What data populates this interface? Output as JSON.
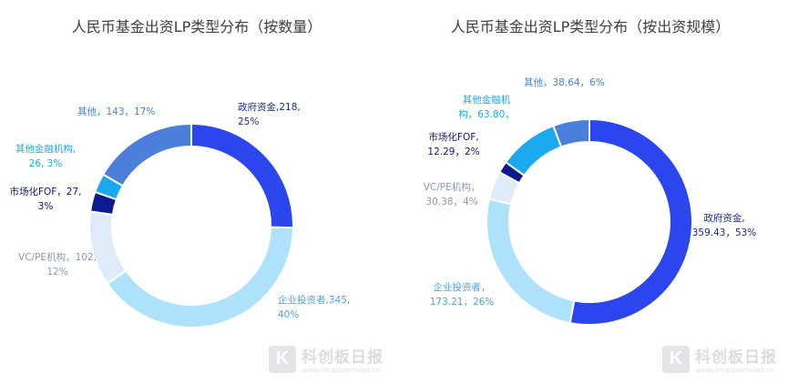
{
  "chart_data": [
    {
      "type": "pie",
      "title": "人民币基金出资LP类型分布（按数量）",
      "slices": [
        {
          "name": "政府资金",
          "value": 218,
          "pct": 25,
          "label_lines": [
            "政府资金,218,",
            "25%"
          ],
          "color": "#2b46ee",
          "label_color": "#1a2c8f"
        },
        {
          "name": "企业投资者",
          "value": 345,
          "pct": 40,
          "label_lines": [
            "企业投资者,345,",
            "40%"
          ],
          "color": "#aee1fb",
          "label_color": "#4aa7dc"
        },
        {
          "name": "VC/PE机构",
          "value": 102,
          "pct": 12,
          "label_lines": [
            "VC/PE机构，102,",
            "12%"
          ],
          "color": "#e0ebfa",
          "label_color": "#8a9ab0"
        },
        {
          "name": "市场化FOF",
          "value": 27,
          "pct": 3,
          "label_lines": [
            "市场化FOF，27,",
            "3%"
          ],
          "color": "#0b1a8f",
          "label_color": "#0b1a6e"
        },
        {
          "name": "其他金融机构",
          "value": 26,
          "pct": 3,
          "label_lines": [
            "其他金融机构,",
            "26, 3%"
          ],
          "color": "#1aa8ef",
          "label_color": "#1aa8ef"
        },
        {
          "name": "其他",
          "value": 143,
          "pct": 17,
          "label_lines": [
            "其他，143，17%"
          ],
          "color": "#4a7fdb",
          "label_color": "#4a7fdb"
        }
      ]
    },
    {
      "type": "pie",
      "title": "人民币基金出资LP类型分布（按出资规模）",
      "slices": [
        {
          "name": "政府资金",
          "value": 359.43,
          "pct": 53,
          "label_lines": [
            "政府资金,",
            "359.43，53%"
          ],
          "color": "#2b46ee",
          "label_color": "#1a2c8f"
        },
        {
          "name": "企业投资者",
          "value": 173.21,
          "pct": 26,
          "label_lines": [
            "企业投资者，",
            "173.21，26%"
          ],
          "color": "#aee1fb",
          "label_color": "#4aa7dc"
        },
        {
          "name": "VC/PE机构",
          "value": 30.38,
          "pct": 4,
          "label_lines": [
            "VC/PE机构，",
            "30.38，4%"
          ],
          "color": "#e0ebfa",
          "label_color": "#8a9ab0"
        },
        {
          "name": "市场化FOF",
          "value": 12.29,
          "pct": 2,
          "label_lines": [
            "市场化FOF,",
            "12.29，2%"
          ],
          "color": "#0b1a8f",
          "label_color": "#0b1a6e"
        },
        {
          "name": "其他金融机构",
          "value": 63.8,
          "pct": 9,
          "label_lines": [
            "其他金融机",
            "构，63.80，"
          ],
          "color": "#1aa8ef",
          "label_color": "#1aa8ef"
        },
        {
          "name": "其他",
          "value": 38.64,
          "pct": 6,
          "label_lines": [
            "其他，38.64，6%"
          ],
          "color": "#4a7fdb",
          "label_color": "#4a7fdb"
        }
      ]
    }
  ],
  "watermark": {
    "name": "科创板日报",
    "url": "www.chinastarmarket.cn",
    "logo_glyph": "K"
  }
}
